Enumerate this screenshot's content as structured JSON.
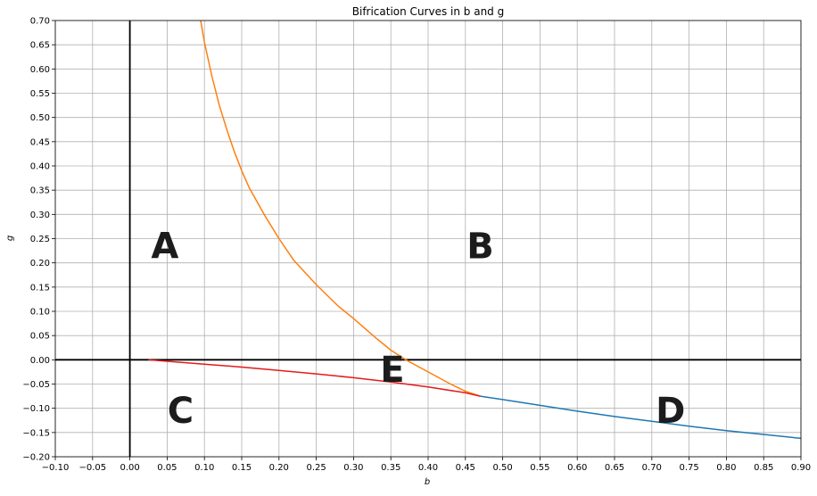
{
  "chart_data": {
    "type": "line",
    "title": "Bifrication Curves in b and g",
    "xlabel": "b",
    "ylabel": "g",
    "xlim": [
      -0.1,
      0.9
    ],
    "ylim": [
      -0.2,
      0.7
    ],
    "grid": true,
    "x_ticks": [
      -0.1,
      -0.05,
      0.0,
      0.05,
      0.1,
      0.15,
      0.2,
      0.25,
      0.3,
      0.35,
      0.4,
      0.45,
      0.5,
      0.55,
      0.6,
      0.65,
      0.7,
      0.75,
      0.8,
      0.85,
      0.9
    ],
    "x_tick_labels": [
      "−0.10",
      "−0.05",
      "0.00",
      "0.05",
      "0.10",
      "0.15",
      "0.20",
      "0.25",
      "0.30",
      "0.35",
      "0.40",
      "0.45",
      "0.50",
      "0.55",
      "0.60",
      "0.65",
      "0.70",
      "0.75",
      "0.80",
      "0.85",
      "0.90"
    ],
    "y_ticks": [
      -0.2,
      -0.15,
      -0.1,
      -0.05,
      0.0,
      0.05,
      0.1,
      0.15,
      0.2,
      0.25,
      0.3,
      0.35,
      0.4,
      0.45,
      0.5,
      0.55,
      0.6,
      0.65,
      0.7
    ],
    "y_tick_labels": [
      "−0.20",
      "−0.15",
      "−0.10",
      "−0.05",
      "0.00",
      "0.05",
      "0.10",
      "0.15",
      "0.20",
      "0.25",
      "0.30",
      "0.35",
      "0.40",
      "0.45",
      "0.50",
      "0.55",
      "0.60",
      "0.65",
      "0.70"
    ],
    "reference_lines": [
      {
        "orientation": "vertical",
        "value": 0.0,
        "color": "#000000"
      },
      {
        "orientation": "horizontal",
        "value": 0.0,
        "color": "#000000"
      }
    ],
    "series": [
      {
        "color": "#1f77b4",
        "x": [
          0.47,
          0.5,
          0.55,
          0.6,
          0.65,
          0.7,
          0.75,
          0.8,
          0.85,
          0.9
        ],
        "y": [
          -0.075,
          -0.082,
          -0.094,
          -0.106,
          -0.117,
          -0.127,
          -0.137,
          -0.146,
          -0.154,
          -0.162
        ]
      },
      {
        "color": "#ff7f0e",
        "x": [
          0.095,
          0.1,
          0.11,
          0.12,
          0.13,
          0.14,
          0.15,
          0.16,
          0.18,
          0.2,
          0.22,
          0.25,
          0.28,
          0.3,
          0.33,
          0.35,
          0.37,
          0.4,
          0.43,
          0.45,
          0.47
        ],
        "y": [
          0.7,
          0.655,
          0.585,
          0.525,
          0.475,
          0.43,
          0.39,
          0.355,
          0.3,
          0.25,
          0.205,
          0.155,
          0.11,
          0.085,
          0.045,
          0.02,
          0.0,
          -0.025,
          -0.05,
          -0.065,
          -0.075
        ]
      },
      {
        "color": "#e41a1c",
        "x": [
          0.025,
          0.05,
          0.1,
          0.15,
          0.2,
          0.25,
          0.3,
          0.35,
          0.4,
          0.45,
          0.47
        ],
        "y": [
          0.0,
          -0.003,
          -0.009,
          -0.015,
          -0.022,
          -0.029,
          -0.037,
          -0.046,
          -0.056,
          -0.068,
          -0.075
        ]
      }
    ],
    "annotations": [
      {
        "text": "A",
        "x": 0.047,
        "y": 0.23
      },
      {
        "text": "B",
        "x": 0.47,
        "y": 0.23
      },
      {
        "text": "C",
        "x": 0.068,
        "y": -0.11
      },
      {
        "text": "D",
        "x": 0.725,
        "y": -0.11
      },
      {
        "text": "E",
        "x": 0.352,
        "y": -0.025
      }
    ]
  }
}
